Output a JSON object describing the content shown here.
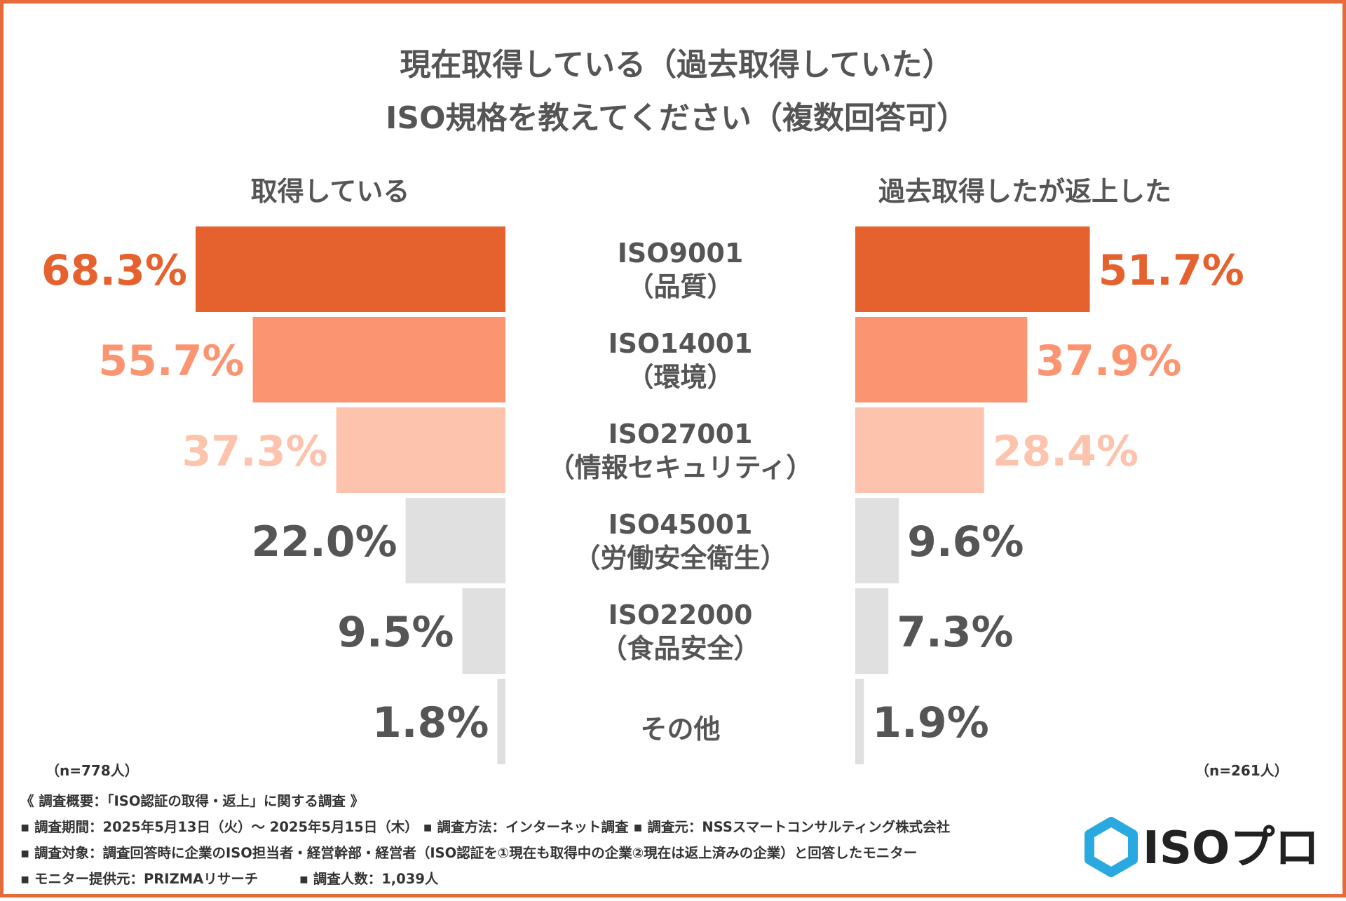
{
  "chart_data": {
    "type": "bar",
    "orientation": "horizontal-butterfly",
    "title_lines": [
      "現在取得している（過去取得していた）",
      "ISO規格を教えてください（複数回答可）"
    ],
    "categories": [
      [
        "ISO9001",
        "（品質）"
      ],
      [
        "ISO14001",
        "（環境）"
      ],
      [
        "ISO27001",
        "（情報セキュリティ）"
      ],
      [
        "ISO45001",
        "（労働安全衛生）"
      ],
      [
        "ISO22000",
        "（食品安全）"
      ],
      [
        "その他"
      ]
    ],
    "series": [
      {
        "name": "取得している",
        "side": "left",
        "values": [
          68.3,
          55.7,
          37.3,
          22.0,
          9.5,
          1.8
        ],
        "labels": [
          "68.3%",
          "55.7%",
          "37.3%",
          "22.0%",
          "9.5%",
          "1.8%"
        ],
        "sample": "（n=778人）"
      },
      {
        "name": "過去取得したが返上した",
        "side": "right",
        "values": [
          51.7,
          37.9,
          28.4,
          9.6,
          7.3,
          1.9
        ],
        "labels": [
          "51.7%",
          "37.9%",
          "28.4%",
          "9.6%",
          "7.3%",
          "1.9%"
        ],
        "sample": "（n=261人）"
      }
    ],
    "colors": {
      "bars": [
        "#E5622F",
        "#FB9470",
        "#FEC3AC",
        "#E0E0E0",
        "#E0E0E0",
        "#E0E0E0"
      ],
      "labels": [
        "#E5622F",
        "#FB9470",
        "#FEC3AC",
        "#555555",
        "#555555",
        "#555555"
      ]
    },
    "xlim": [
      0,
      70
    ]
  },
  "footer": {
    "lines": [
      "《 調査概要：「ISO認証の取得・返上」に関する調査 》",
      "▪ 調査期間：2025年5月13日（火）～ 2025年5月15日（木） ▪ 調査方法：インターネット調査 ▪ 調査元：NSSスマートコンサルティング株式会社",
      "▪ 調査対象：調査回答時に企業のISO担当者・経営幹部・経営者（ISO認証を①現在も取得中の企業②現在は返上済みの企業）と回答したモニター",
      "▪ モニター提供元：PRIZMAリサーチ　　　▪ 調査人数：1,039人"
    ]
  },
  "logo": {
    "text": "ISOプロ",
    "color": "#2AA9E0"
  },
  "frame_color": "#E66A3A"
}
